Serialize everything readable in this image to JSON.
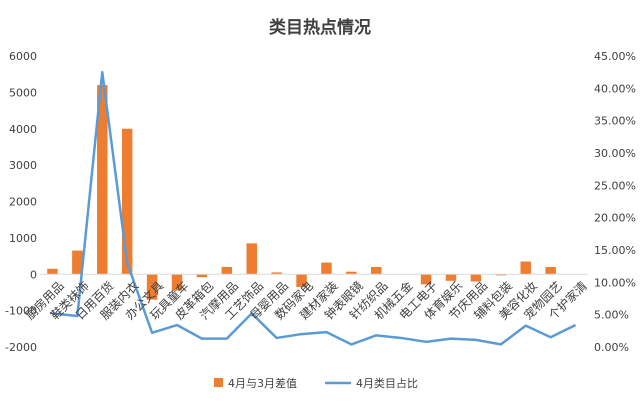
{
  "chart_data": {
    "type": "bar+line",
    "title": "类目热点情况",
    "categories": [
      "厨房用品",
      "鞋类袜饰",
      "日用百货",
      "服装内衣",
      "办公文具",
      "玩具童车",
      "皮革箱包",
      "汽摩用品",
      "工艺饰品",
      "母婴用品",
      "数码家电",
      "建材家装",
      "钟表眼镜",
      "针纺织品",
      "机械五金",
      "电工电子",
      "体育娱乐",
      "节庆用品",
      "辅料包装",
      "美容化妆",
      "宠物园艺",
      "个护家清"
    ],
    "series": [
      {
        "name": "4月与3月差值",
        "type": "bar",
        "axis": "left",
        "color": "#ED7D31",
        "values": [
          150,
          650,
          5200,
          4000,
          -700,
          -450,
          -80,
          200,
          850,
          50,
          -350,
          320,
          70,
          200,
          0,
          -280,
          -180,
          -200,
          -30,
          350,
          200,
          0
        ]
      },
      {
        "name": "4月类目占比",
        "type": "line",
        "axis": "right",
        "color": "#5B9BD5",
        "values": [
          5.2,
          4.8,
          42.5,
          13.0,
          2.2,
          3.4,
          1.3,
          1.3,
          5.2,
          1.4,
          2.0,
          2.3,
          0.4,
          1.8,
          1.4,
          0.8,
          1.3,
          1.1,
          0.4,
          3.3,
          1.5,
          3.4
        ]
      }
    ],
    "y_left": {
      "min": -2000,
      "max": 6000,
      "step": 1000,
      "ticks": [
        "-2000",
        "-1000",
        "0",
        "1000",
        "2000",
        "3000",
        "4000",
        "5000",
        "6000"
      ]
    },
    "y_right": {
      "min": 0,
      "max": 45,
      "step": 5,
      "ticks": [
        "0.00%",
        "5.00%",
        "10.00%",
        "15.00%",
        "20.00%",
        "25.00%",
        "30.00%",
        "35.00%",
        "40.00%",
        "45.00%"
      ]
    },
    "grid": false,
    "legend_position": "bottom"
  }
}
